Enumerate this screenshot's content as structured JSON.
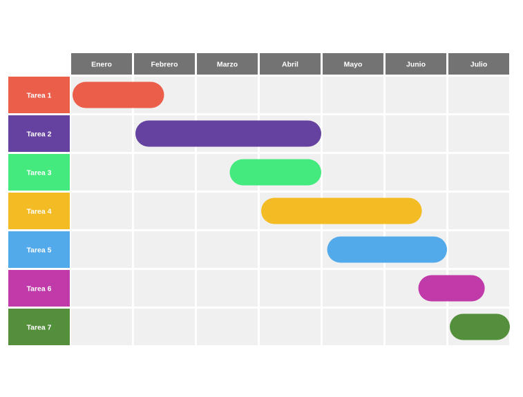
{
  "chart_data": {
    "type": "gantt",
    "months": [
      "Enero",
      "Febrero",
      "Marzo",
      "Abril",
      "Mayo",
      "Junio",
      "Julio"
    ],
    "tasks": [
      {
        "name": "Tarea 1",
        "start": 0.0,
        "end": 1.5,
        "color": "#EB5E4A"
      },
      {
        "name": "Tarea 2",
        "start": 1.0,
        "end": 4.0,
        "color": "#6542A0"
      },
      {
        "name": "Tarea 3",
        "start": 2.5,
        "end": 4.0,
        "color": "#45EA7F"
      },
      {
        "name": "Tarea 4",
        "start": 3.0,
        "end": 5.6,
        "color": "#F4BC24"
      },
      {
        "name": "Tarea 5",
        "start": 4.05,
        "end": 6.0,
        "color": "#52AAEB"
      },
      {
        "name": "Tarea 6",
        "start": 5.5,
        "end": 6.6,
        "color": "#C03AA9"
      },
      {
        "name": "Tarea 7",
        "start": 6.0,
        "end": 7.0,
        "color": "#548F3B"
      }
    ],
    "header_color": "#737373",
    "cell_color": "#F0F0F0"
  }
}
